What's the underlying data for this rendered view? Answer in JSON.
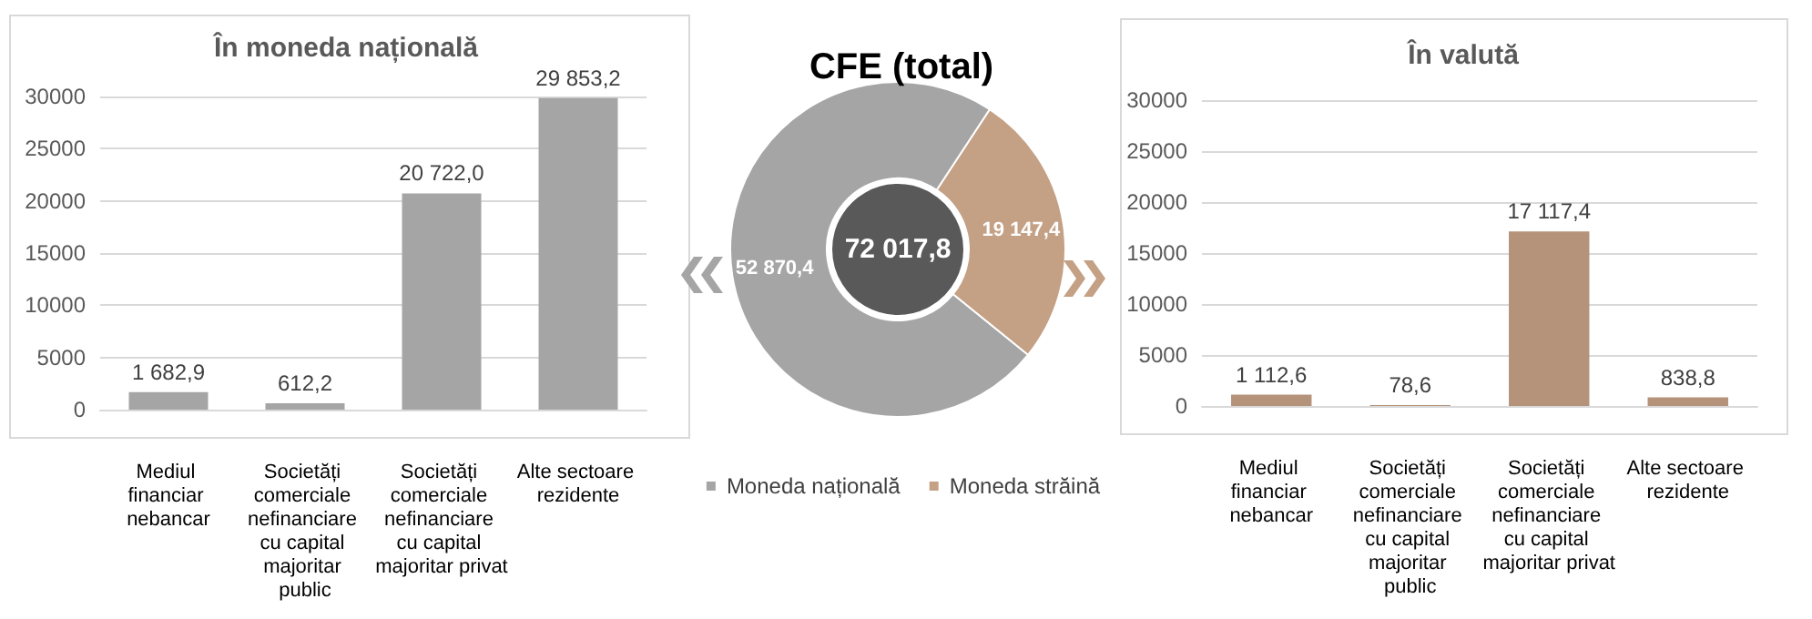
{
  "chart_data": [
    {
      "type": "bar",
      "title": "În moneda națională",
      "categories": [
        "Mediul financiar nebancar",
        "Societăți comerciale nefinanciare cu capital majoritar public",
        "Societăți comerciale nefinanciare cu capital majoritar privat",
        "Alte sectoare rezidente"
      ],
      "values": [
        1682.9,
        612.2,
        20722.0,
        29853.2
      ],
      "color": "#a5a5a5",
      "value_labels": [
        "1 682,9",
        "612,2",
        "20 722,0",
        "29 853,2"
      ],
      "ylim": [
        0,
        30000
      ],
      "yticks": [
        0,
        5000,
        10000,
        15000,
        20000,
        25000,
        30000
      ],
      "grid": "y",
      "legend": false
    },
    {
      "type": "donut",
      "title": "CFE (total)",
      "categories": [
        "Moneda națională",
        "Moneda străină"
      ],
      "values": [
        52870.4,
        19147.4
      ],
      "colors": [
        "#a5a5a5",
        "#c4a085"
      ],
      "value_labels": [
        "52 870,4",
        "19 147,4"
      ],
      "annotations": [
        "72 017,8"
      ],
      "legend": "bottom"
    },
    {
      "type": "bar",
      "title": "În valută",
      "categories": [
        "Mediul financiar nebancar",
        "Societăți comerciale nefinanciare cu capital majoritar public",
        "Societăți comerciale nefinanciare cu capital majoritar privat",
        "Alte sectoare rezidente"
      ],
      "values": [
        1112.6,
        78.6,
        17117.4,
        838.8
      ],
      "color": "#b5937b",
      "value_labels": [
        "1 112,6",
        "78,6",
        "17 117,4",
        "838,8"
      ],
      "ylim": [
        0,
        30000
      ],
      "yticks": [
        0,
        5000,
        10000,
        15000,
        20000,
        25000,
        30000
      ],
      "grid": "y",
      "legend": false
    }
  ]
}
